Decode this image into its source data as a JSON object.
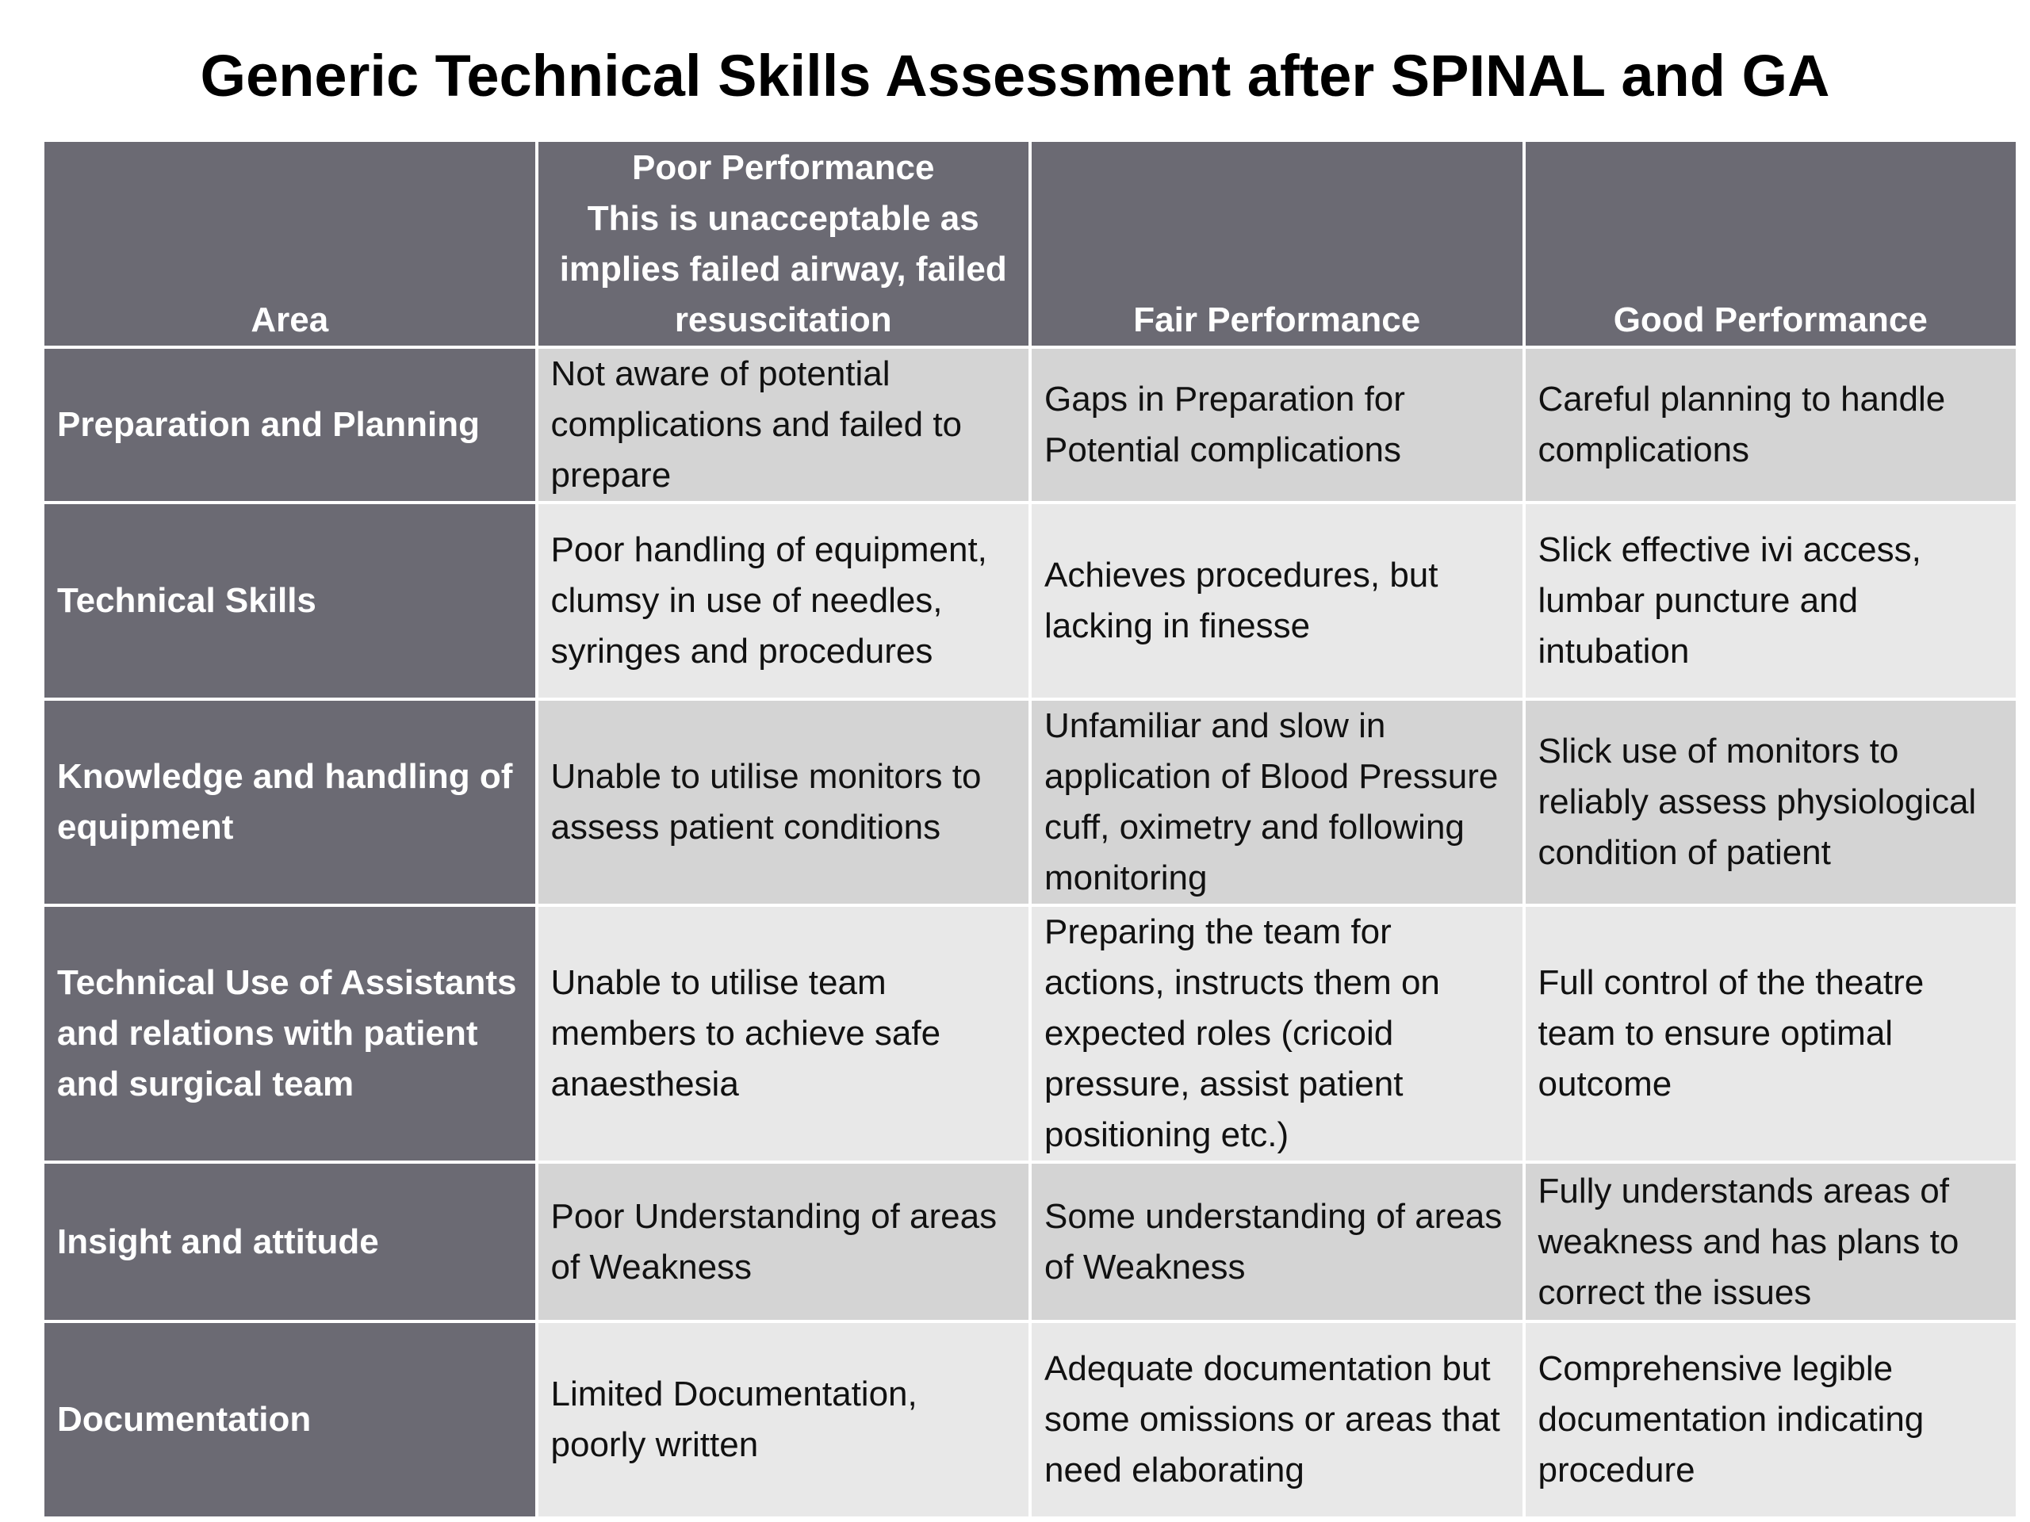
{
  "title": "Generic Technical Skills Assessment after SPINAL and GA",
  "headers": {
    "area": "Area",
    "poor_line1": "Poor Performance",
    "poor_line2": "This is unacceptable as implies failed airway, failed resuscitation",
    "fair": "Fair Performance",
    "good": "Good Performance"
  },
  "rows": [
    {
      "area": "Preparation and Planning",
      "poor": "Not aware of potential complications and failed to prepare",
      "fair": "Gaps in Preparation for Potential complications",
      "good": "Careful planning to handle complications"
    },
    {
      "area": "Technical Skills",
      "poor": "Poor handling of equipment, clumsy in use of needles, syringes and procedures",
      "fair": "Achieves procedures, but lacking in finesse",
      "good": "Slick effective ivi access, lumbar puncture and intubation"
    },
    {
      "area": "Knowledge and handling of equipment",
      "poor": "Unable to utilise monitors to assess patient conditions",
      "fair": "Unfamiliar and slow in application of Blood Pressure cuff, oximetry and following monitoring",
      "good": "Slick use of monitors to reliably assess physiological condition of patient"
    },
    {
      "area": "Technical Use of Assistants and relations with patient and surgical team",
      "poor": "Unable to utilise team members to achieve safe anaesthesia",
      "fair": "Preparing the team for actions, instructs them on expected roles (cricoid pressure, assist patient positioning etc.)",
      "good": "Full control of the theatre team to ensure optimal outcome"
    },
    {
      "area": "Insight and attitude",
      "poor": "Poor Understanding of areas of Weakness",
      "fair": "Some understanding of areas of Weakness",
      "good": "Fully understands areas of weakness and has plans to correct the issues"
    },
    {
      "area": "Documentation",
      "poor": "Limited Documentation, poorly written",
      "fair": "Adequate documentation but some omissions or areas that need elaborating",
      "good": "Comprehensive legible documentation indicating procedure"
    }
  ],
  "colors": {
    "header_bg": "#6b6a73",
    "row_odd_bg": "#d4d4d4",
    "row_even_bg": "#e8e8e8"
  }
}
